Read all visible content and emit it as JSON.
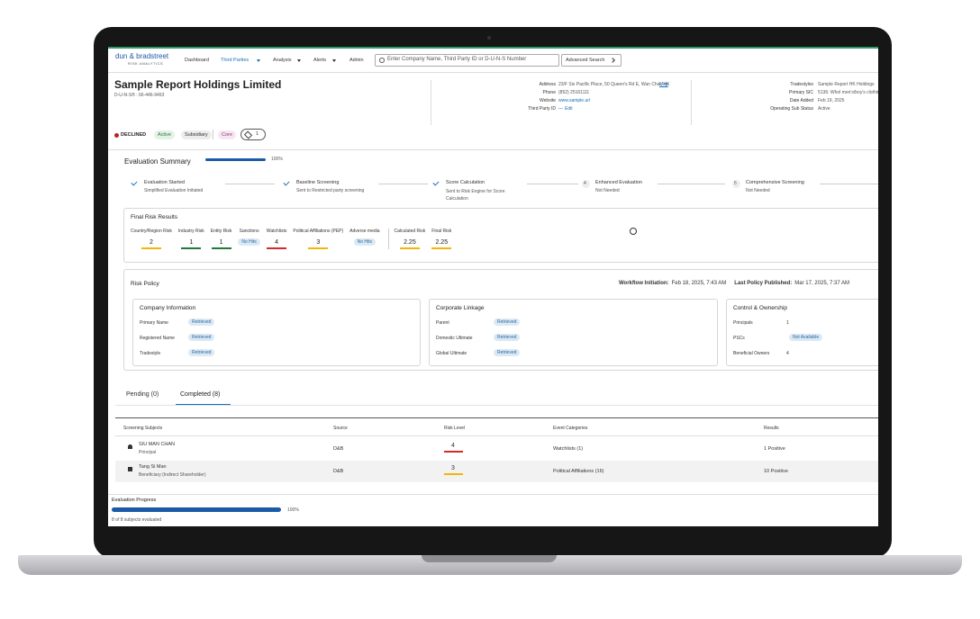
{
  "nav": {
    "logo": "dun & bradstreet",
    "logo_sub": "RISK ANALYTICS",
    "items": [
      "Dashboard",
      "Third Parties",
      "Analysis",
      "Alerts",
      "Admin"
    ],
    "search_placeholder": "Enter Company Name, Third Party ID or D-U-N-S Number",
    "advanced_search": "Advanced Search"
  },
  "company": {
    "name": "Sample Report Holdings Limited",
    "duns": "D-U-N-S® : 66-446-9493",
    "details": [
      {
        "label": "Address",
        "value": "23/F Six Pacific Place, 50 Queen's Rd E, Wan Chai, HK"
      },
      {
        "label": "Phone",
        "value": "(852) 25161111"
      },
      {
        "label": "Website",
        "value": "www.sample.url"
      },
      {
        "label": "Third Party ID",
        "value": "—"
      }
    ],
    "map_link": "Map",
    "edit_link": "Edit",
    "details2": [
      {
        "label": "Tradestyles",
        "value": "Sample Report HK Holdings"
      },
      {
        "label": "Primary SIC",
        "value": "5136: Whol men's/boy's clothing"
      },
      {
        "label": "Date Added",
        "value": "Feb 19, 2025"
      },
      {
        "label": "Operating Sub Status",
        "value": "Active"
      }
    ],
    "status": "DECLINED",
    "badges": [
      "Active",
      "Subsidiary",
      "Core"
    ],
    "tag_count": "1"
  },
  "evaluation": {
    "title": "Evaluation Summary",
    "progress": "100%",
    "steps": [
      {
        "title": "Evaluation Started",
        "subtitle": "Simplified Evaluation Initiated"
      },
      {
        "title": "Baseline Screening",
        "subtitle": "Sent to Restricted party screening"
      },
      {
        "title": "Score Calculation",
        "subtitle": "Sent to Risk Engine for Score Calculation"
      },
      {
        "number": "4",
        "title": "Enhanced Evaluation",
        "subtitle": "Not Needed"
      },
      {
        "number": "5",
        "title": "Comprehensive Screening",
        "subtitle": "Not Needed"
      }
    ]
  },
  "final_risk": {
    "title": "Final Risk Results",
    "items": [
      {
        "label": "Country/Region Risk",
        "value": "2",
        "color": "#f2b705"
      },
      {
        "label": "Industry Risk",
        "value": "1",
        "color": "#1e7b3c"
      },
      {
        "label": "Entity Risk",
        "value": "1",
        "color": "#1e7b3c"
      },
      {
        "label": "Sanctions",
        "value": "No Hits"
      },
      {
        "label": "Watchlists",
        "value": "4",
        "color": "#d42a2a"
      },
      {
        "label": "Political Affiliations (PEP)",
        "value": "3",
        "color": "#f2b705"
      },
      {
        "label": "Adverse media",
        "value": "No Hits"
      },
      {
        "label": "Calculated Risk",
        "value": "2.25",
        "color": "#f2b705"
      },
      {
        "label": "Final Risk",
        "value": "2.25",
        "color": "#f2b705"
      }
    ]
  },
  "risk_policy": {
    "title": "Risk Policy",
    "workflow_label": "Workflow Initiation:",
    "workflow_value": "Feb 18, 2025, 7:43 AM",
    "published_label": "Last Policy Published:",
    "published_value": "Mar 17, 2025, 7:37 AM",
    "groups": [
      {
        "title": "Company Information",
        "rows": [
          {
            "label": "Primary Name",
            "value": "Retrieved"
          },
          {
            "label": "Registered Name",
            "value": "Retrieved"
          },
          {
            "label": "Tradestyle",
            "value": "Retrieved"
          }
        ]
      },
      {
        "title": "Corporate Linkage",
        "rows": [
          {
            "label": "Parent",
            "value": "Retrieved"
          },
          {
            "label": "Domestic Ultimate",
            "value": "Retrieved"
          },
          {
            "label": "Global Ultimate",
            "value": "Retrieved"
          }
        ]
      },
      {
        "title": "Control & Ownership",
        "rows": [
          {
            "label": "Principals",
            "value": "1"
          },
          {
            "label": "PSCs",
            "value": "Not Available"
          },
          {
            "label": "Beneficial Owners",
            "value": "4"
          }
        ]
      }
    ]
  },
  "tabs": [
    "Pending (0)",
    "Completed (8)"
  ],
  "table": {
    "columns": [
      "Screening Subjects",
      "Source",
      "Risk Level",
      "Event Categories",
      "Results"
    ],
    "rows": [
      {
        "name": "SIU MAN CHAN",
        "role": "Principal",
        "source": "D&B",
        "risk": "4",
        "risk_color": "#d42a2a",
        "events": "Watchlists (1)",
        "results": "1 Positive"
      },
      {
        "name": "Tang Si Man",
        "role": "Beneficiary (Indirect Shareholder)",
        "source": "D&B",
        "risk": "3",
        "risk_color": "#f2b705",
        "events": "Political Affiliations (16)",
        "results": "10 Positive"
      }
    ]
  },
  "progress_panel": {
    "title": "Evaluation Progress",
    "percent": "100%",
    "summary": "8 of 8 subjects evaluated"
  }
}
